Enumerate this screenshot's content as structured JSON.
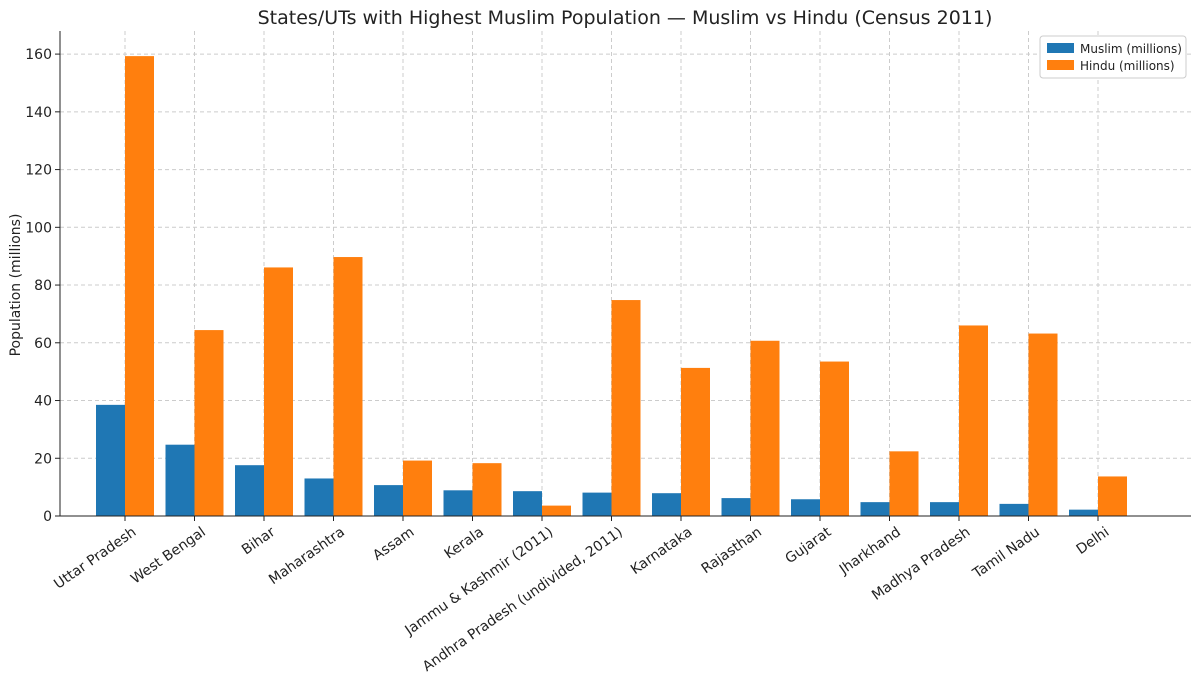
{
  "chart_data": {
    "type": "bar",
    "title": "States/UTs with Highest Muslim Population — Muslim vs Hindu (Census 2011)",
    "xlabel": "",
    "ylabel": "Population (millions)",
    "ylim": [
      0,
      168
    ],
    "yticks": [
      0,
      20,
      40,
      60,
      80,
      100,
      120,
      140,
      160
    ],
    "grid": true,
    "legend_position": "top-right",
    "categories": [
      "Uttar Pradesh",
      "West Bengal",
      "Bihar",
      "Maharashtra",
      "Assam",
      "Kerala",
      "Jammu & Kashmir (2011)",
      "Andhra Pradesh (undivided, 2011)",
      "Karnataka",
      "Rajasthan",
      "Gujarat",
      "Jharkhand",
      "Madhya Pradesh",
      "Tamil Nadu",
      "Delhi"
    ],
    "series": [
      {
        "name": "Muslim (millions)",
        "color": "#1f77b4",
        "values": [
          38.5,
          24.7,
          17.6,
          13.0,
          10.7,
          8.9,
          8.6,
          8.1,
          7.9,
          6.2,
          5.8,
          4.8,
          4.8,
          4.2,
          2.2
        ]
      },
      {
        "name": "Hindu (millions)",
        "color": "#ff7f0e",
        "values": [
          159.3,
          64.4,
          86.1,
          89.7,
          19.2,
          18.3,
          3.6,
          74.8,
          51.3,
          60.7,
          53.5,
          22.4,
          66.0,
          63.2,
          13.7
        ]
      }
    ]
  }
}
